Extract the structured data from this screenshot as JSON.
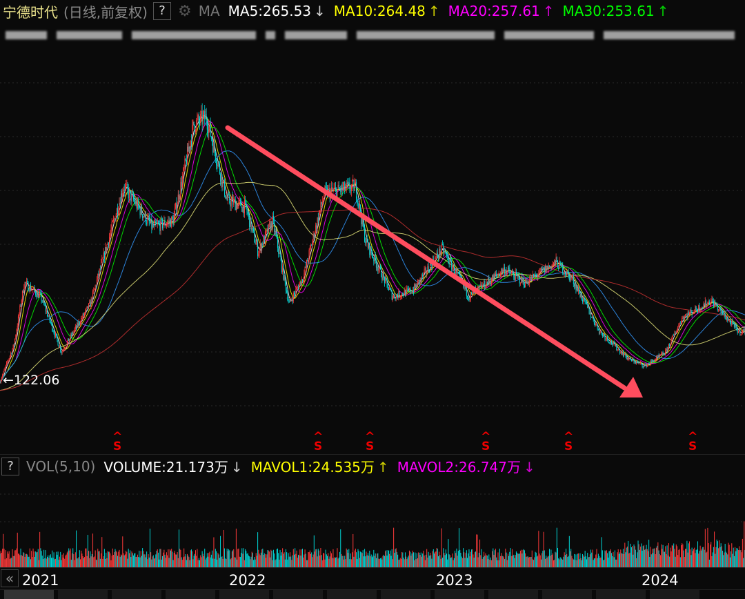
{
  "header": {
    "stock_name": "宁德时代",
    "period": "(日线,前复权)",
    "help": "?",
    "settings_icon": "gear-icon",
    "indicator": "MA",
    "ma": [
      {
        "label": "MA5:265.53",
        "arrow": "↓",
        "color": "#ffffff"
      },
      {
        "label": "MA10:264.48",
        "arrow": "↑",
        "color": "#ffff00"
      },
      {
        "label": "MA20:257.61",
        "arrow": "↑",
        "color": "#ff00ff"
      },
      {
        "label": "MA30:253.61",
        "arrow": "↑",
        "color": "#00ff00"
      }
    ]
  },
  "price_chart": {
    "low_label": "122.06",
    "marker_glyph": "S",
    "trend_arrow_color": "#ff4d5e"
  },
  "volume": {
    "help": "?",
    "indicator": "VOL(5,10)",
    "items": [
      {
        "label": "VOLUME:21.173万",
        "arrow": "↓",
        "color": "#ffffff"
      },
      {
        "label": "MAVOL1:24.535万",
        "arrow": "↑",
        "color": "#ffff00"
      },
      {
        "label": "MAVOL2:26.747万",
        "arrow": "↓",
        "color": "#ff00ff"
      }
    ]
  },
  "x_axis": {
    "years": [
      "2021",
      "2022",
      "2023",
      "2024"
    ],
    "back_icon": "«"
  },
  "chart_data": {
    "type": "candlestick",
    "title": "宁德时代 日线 前复权",
    "key_prices": [
      [
        2020.88,
        116
      ],
      [
        2020.95,
        198
      ],
      [
        2021.0,
        333
      ],
      [
        2021.08,
        303
      ],
      [
        2021.18,
        183
      ],
      [
        2021.32,
        288
      ],
      [
        2021.48,
        542
      ],
      [
        2021.62,
        453
      ],
      [
        2021.72,
        468
      ],
      [
        2021.82,
        677
      ],
      [
        2021.88,
        692
      ],
      [
        2021.98,
        512
      ],
      [
        2022.07,
        497
      ],
      [
        2022.13,
        400
      ],
      [
        2022.2,
        467
      ],
      [
        2022.28,
        288
      ],
      [
        2022.35,
        348
      ],
      [
        2022.45,
        527
      ],
      [
        2022.6,
        542
      ],
      [
        2022.65,
        423
      ],
      [
        2022.78,
        303
      ],
      [
        2022.88,
        318
      ],
      [
        2023.02,
        407
      ],
      [
        2023.15,
        303
      ],
      [
        2023.32,
        363
      ],
      [
        2023.42,
        333
      ],
      [
        2023.57,
        378
      ],
      [
        2023.65,
        340
      ],
      [
        2023.78,
        228
      ],
      [
        2023.92,
        168
      ],
      [
        2024.0,
        153
      ],
      [
        2024.1,
        183
      ],
      [
        2024.18,
        258
      ],
      [
        2024.32,
        295
      ],
      [
        2024.45,
        228
      ]
    ],
    "ma_periods": [
      5,
      10,
      20,
      30,
      60,
      120,
      250
    ],
    "ma_colors": [
      "#ffffff",
      "#ffff00",
      "#ff00ff",
      "#00ff00",
      "#3399ff",
      "#e6e67a",
      "#cc3333"
    ],
    "marker_years": [
      2021.45,
      2022.42,
      2022.67,
      2023.23,
      2023.63,
      2024.23
    ],
    "xlim": [
      2020.883,
      2024.483
    ],
    "ylim_price": [
      60,
      760
    ]
  }
}
